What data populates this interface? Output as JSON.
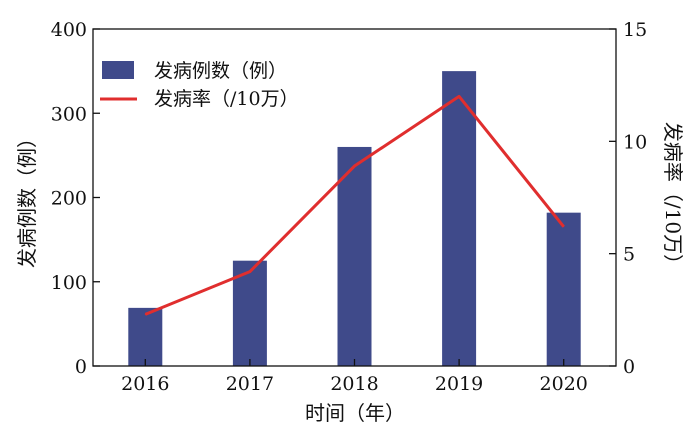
{
  "chart_data": {
    "type": "bar",
    "categories": [
      "2016",
      "2017",
      "2018",
      "2019",
      "2020"
    ],
    "series": [
      {
        "name": "发病例数（例）",
        "type": "bar",
        "axis": "left",
        "color": "#3f4a8a",
        "values": [
          69,
          125,
          260,
          350,
          182
        ]
      },
      {
        "name": "发病率（/10万）",
        "type": "line",
        "axis": "right",
        "color": "#e02e2e",
        "values": [
          2.3,
          4.2,
          8.9,
          12.0,
          6.2
        ]
      }
    ],
    "xlabel": "时间（年）",
    "ylabel": "发病例数（例）",
    "y2label": "发病率（/10万）",
    "ylim": [
      0,
      400
    ],
    "y2lim": [
      0,
      15
    ],
    "yticks": [
      "0",
      "100",
      "200",
      "300",
      "400"
    ],
    "y2ticks": [
      "0",
      "5",
      "10",
      "15"
    ],
    "grid": false,
    "legend_position": "top-left"
  }
}
